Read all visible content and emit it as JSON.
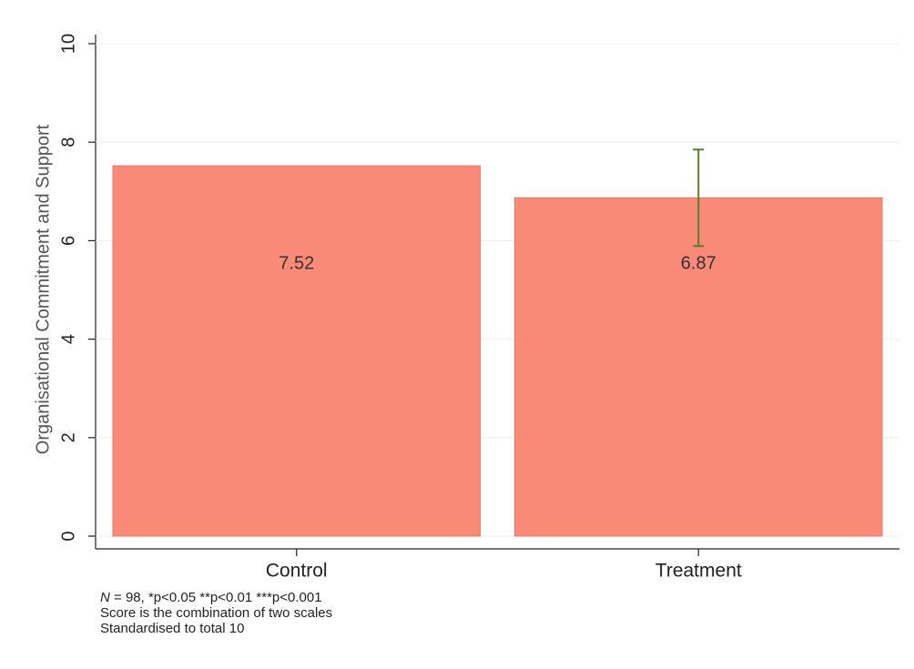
{
  "chart_data": {
    "type": "bar",
    "y_label": "Organisational Commitment and Support",
    "categories": [
      "Control",
      "Treatment"
    ],
    "values": [
      7.52,
      6.87
    ],
    "errors": [
      null,
      0.98
    ],
    "color": "#fa8a78",
    "error_color": "#5b7d2a",
    "ylim": [
      0,
      10
    ],
    "yticks": [
      0,
      2,
      4,
      6,
      8,
      10
    ],
    "grid": true,
    "notes": [
      "N = 98, *p<0.05 **p<0.01 ***p<0.001",
      "Score is the combination of two scales",
      "Standardised to total 10"
    ]
  }
}
